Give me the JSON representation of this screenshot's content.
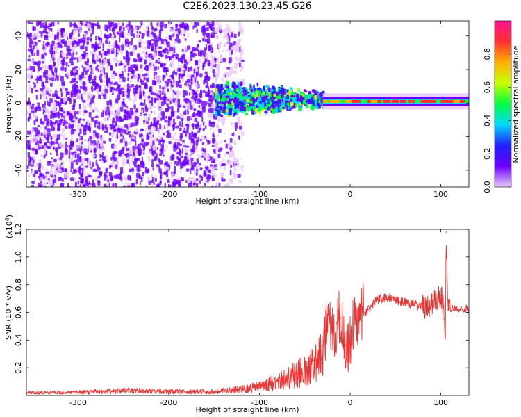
{
  "title": "C2E6.2023.130.23.45.G26",
  "chart_data": [
    {
      "type": "heatmap",
      "xlabel": "Height of straight line (km)",
      "ylabel": "Frequency (Hz)",
      "xlim": [
        -357,
        131
      ],
      "ylim": [
        -50,
        49
      ],
      "x_ticks": [
        -300,
        -200,
        -100,
        0,
        100
      ],
      "y_ticks": [
        -40,
        -20,
        0,
        20,
        40
      ],
      "colorbar": {
        "label": "Normalized spectral amplitude",
        "range": [
          0,
          1
        ],
        "ticks": [
          "0.0",
          "0.2",
          "0.4",
          "0.6",
          "0.8"
        ],
        "colors": [
          "#e9c8f9",
          "#6b00ff",
          "#2020ff",
          "#00d8ff",
          "#00ff40",
          "#c8ff00",
          "#ffb000",
          "#ff3030",
          "#ff1493"
        ]
      },
      "regions": [
        {
          "x": [
            -357,
            -150
          ],
          "freq_range": [
            -50,
            49
          ],
          "amplitude": 0.08,
          "pattern": "scattered noise"
        },
        {
          "x": [
            -150,
            -120
          ],
          "freq_range": [
            -50,
            49
          ],
          "amplitude": 0.04,
          "pattern": "sparse noise"
        },
        {
          "x": [
            -150,
            -30
          ],
          "freq_range": [
            -12,
            12
          ],
          "amplitude": 0.3,
          "pattern": "broadband signal"
        },
        {
          "x": [
            -30,
            131
          ],
          "freq_center": 1,
          "half_width": 2,
          "amplitude": 0.55,
          "pattern": "narrow tone"
        }
      ],
      "grid": false
    },
    {
      "type": "line",
      "xlabel": "Height of straight line (km)",
      "ylabel": "SNR (10 * v/v)",
      "y_multiplier": "(x10",
      "y_multiplier_exp": "4",
      "y_multiplier_close": ")",
      "xlim": [
        -357,
        131
      ],
      "ylim": [
        0,
        1.2
      ],
      "x_ticks": [
        -300,
        -200,
        -100,
        0,
        100
      ],
      "y_ticks": [
        "0.2",
        "0.4",
        "0.6",
        "0.8",
        "1.0",
        "1.2"
      ],
      "series": [
        {
          "color": "#ee3333",
          "x": [
            -357,
            -300,
            -250,
            -200,
            -150,
            -120,
            -100,
            -90,
            -80,
            -70,
            -60,
            -50,
            -45,
            -40,
            -35,
            -30,
            -25,
            -20,
            -15,
            -10,
            -5,
            0,
            5,
            10,
            15,
            20,
            25,
            30,
            40,
            50,
            60,
            70,
            80,
            90,
            95,
            100,
            103,
            105,
            106,
            108,
            110,
            120,
            131
          ],
          "y": [
            0.02,
            0.025,
            0.04,
            0.03,
            0.03,
            0.05,
            0.07,
            0.09,
            0.11,
            0.14,
            0.17,
            0.2,
            0.22,
            0.25,
            0.3,
            0.36,
            0.48,
            0.46,
            0.52,
            0.56,
            0.36,
            0.4,
            0.56,
            0.54,
            0.6,
            0.62,
            0.66,
            0.69,
            0.71,
            0.69,
            0.67,
            0.66,
            0.64,
            0.65,
            0.7,
            0.72,
            0.66,
            0.45,
            1.18,
            0.62,
            0.63,
            0.62,
            0.63
          ]
        }
      ],
      "grid": false
    }
  ]
}
